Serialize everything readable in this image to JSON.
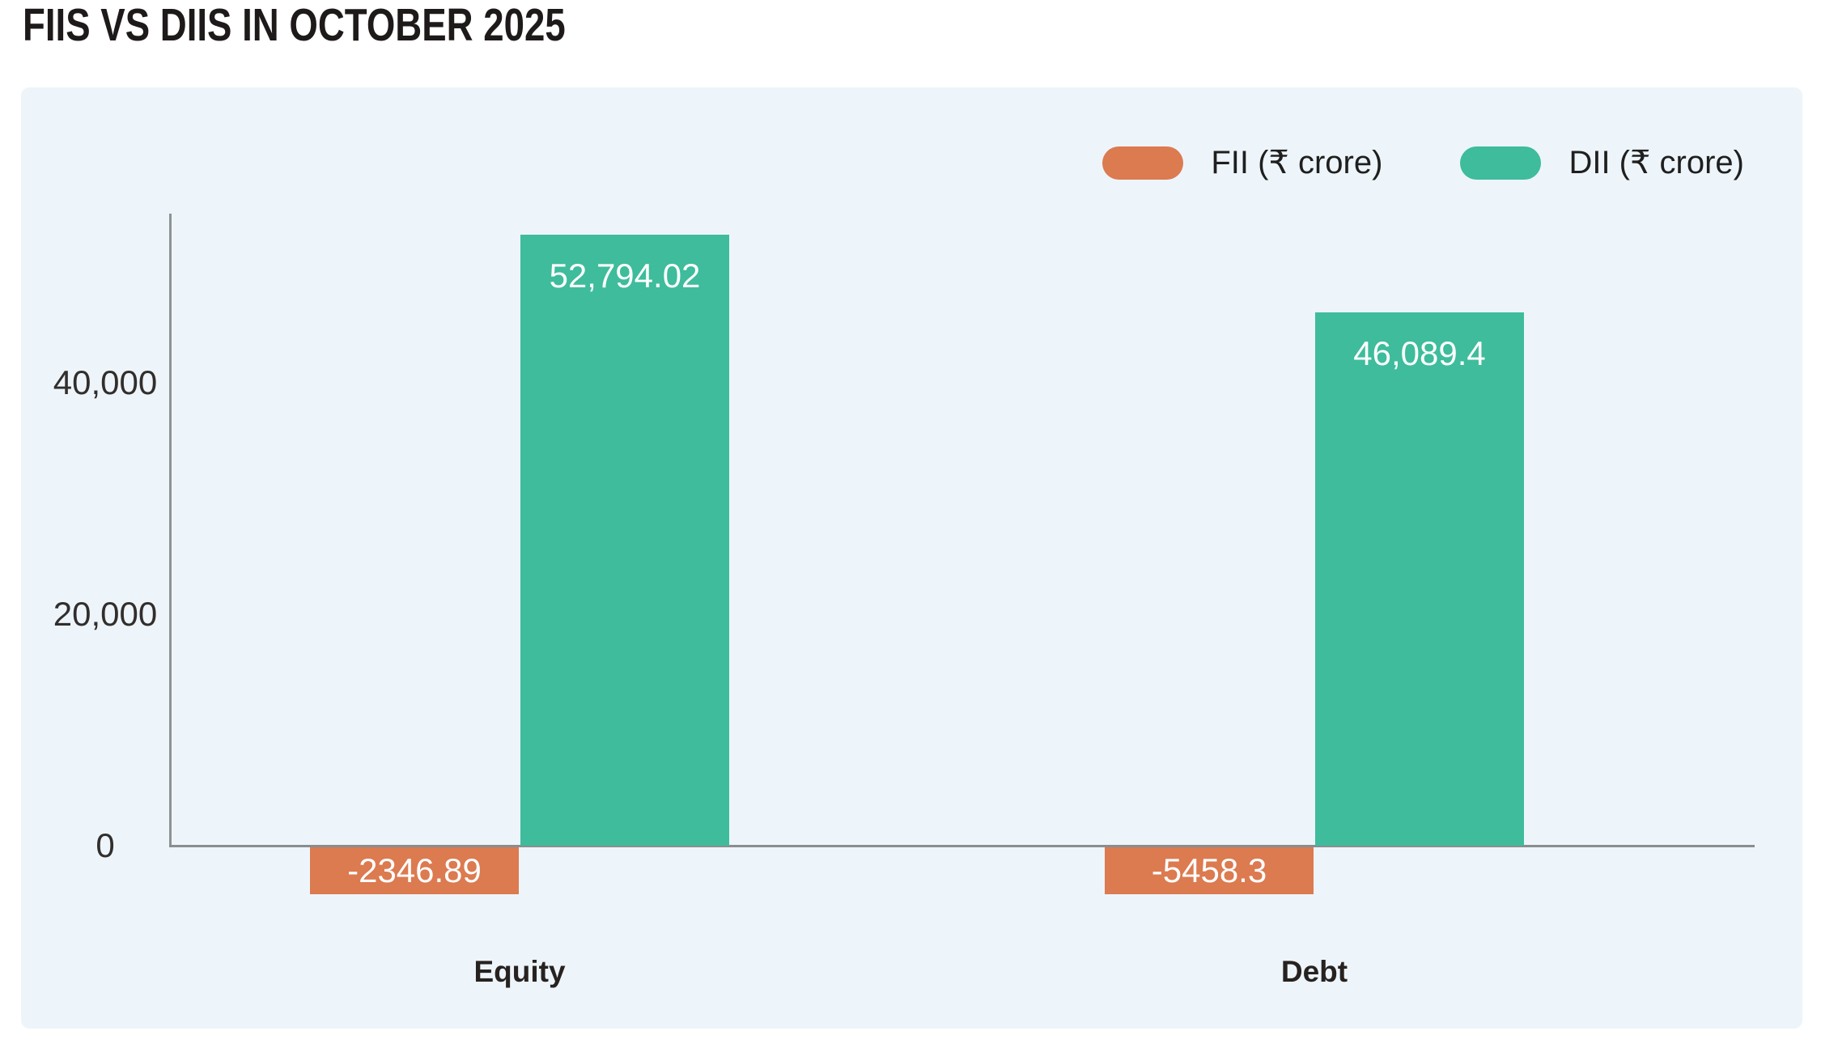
{
  "title": "FIIS VS DIIS IN OCTOBER 2025",
  "legend": [
    {
      "key": "fii",
      "label": "FII (₹ crore)",
      "color": "#dc7a50"
    },
    {
      "key": "dii",
      "label": "DII (₹ crore)",
      "color": "#3ebc9c"
    }
  ],
  "chart_data": {
    "type": "bar",
    "title": "FIIS VS DIIS IN OCTOBER 2025",
    "categories": [
      "Equity",
      "Debt"
    ],
    "series": [
      {
        "name": "FII (₹ crore)",
        "color": "#dc7a50",
        "values": [
          -2346.89,
          -5458.3
        ],
        "labels": [
          "-2346.89",
          "-5458.3"
        ]
      },
      {
        "name": "DII (₹ crore)",
        "color": "#3ebc9c",
        "values": [
          52794.02,
          46089.4
        ],
        "labels": [
          "52,794.02",
          "46,089.4"
        ]
      }
    ],
    "y_axis": {
      "ticks": [
        0,
        20000,
        40000
      ],
      "tick_labels": [
        "0",
        "20,000",
        "40,000"
      ]
    },
    "ylim": [
      -6000,
      56000
    ],
    "grid": false,
    "legend_position": "top-right",
    "colors": {
      "panel_background": "#edf5fa",
      "axis": "#8f9294",
      "bar_value_text": "#ffffff"
    }
  }
}
